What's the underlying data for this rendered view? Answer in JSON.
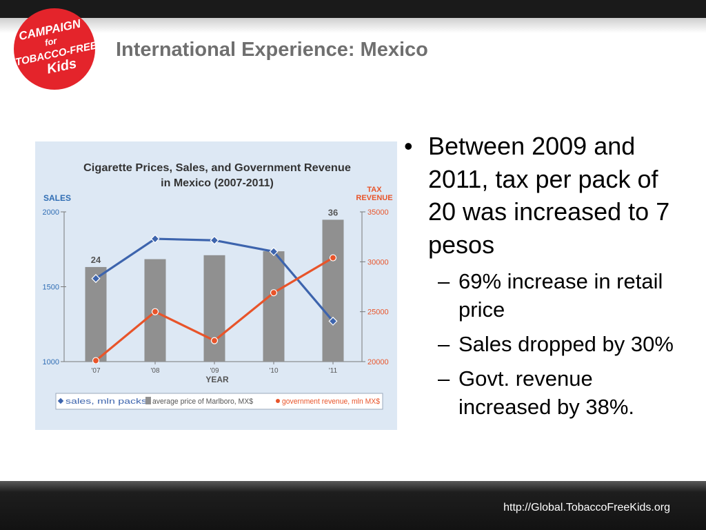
{
  "slide": {
    "title": "International Experience: Mexico",
    "footer_url": "http://Global.TobaccoFreeKids.org"
  },
  "logo": {
    "name": "Campaign for Tobacco-Free Kids logo",
    "lines": [
      "CAMPAIGN",
      "for",
      "TOBACCO-FREE",
      "Kids"
    ],
    "color": "#e4242b"
  },
  "bullets": {
    "main": "Between 2009 and 2011, tax per pack of 20 was increased to 7 pesos",
    "subs": [
      "69% increase in retail price",
      "Sales dropped by 30%",
      "Govt. revenue increased by 38%."
    ]
  },
  "chart_data": {
    "type": "bar",
    "title": "Cigarette Prices, Sales, and Government Revenue in Mexico (2007-2011)",
    "xlabel": "YEAR",
    "categories": [
      "'07",
      "'08",
      "'09",
      "'10",
      "'11"
    ],
    "left_axis": {
      "label": "SALES",
      "ticks": [
        "2000",
        "1500",
        "1000"
      ],
      "ylim": [
        1000,
        2000
      ]
    },
    "right_axis": {
      "label": "TAX REVENUE",
      "ticks": [
        "35000",
        "30000",
        "25000",
        "20000"
      ],
      "ylim": [
        20000,
        35000
      ]
    },
    "series": [
      {
        "name": "sales, mln packs",
        "kind": "line",
        "axis": "left",
        "color": "#3d64ad",
        "values": [
          1555,
          1820,
          1810,
          1735,
          1270
        ]
      },
      {
        "name": "average price of Marlboro, MX$",
        "kind": "bar",
        "axis": "left",
        "color": "#909090",
        "values": [
          24,
          26,
          27,
          28,
          36
        ],
        "labels": [
          "24",
          "",
          "",
          "",
          "36"
        ]
      },
      {
        "name": "government revenue, mln MX$",
        "kind": "line",
        "axis": "right",
        "color": "#e8542a",
        "values": [
          20100,
          25000,
          22100,
          26900,
          30400
        ]
      }
    ],
    "legend_position": "bottom",
    "grid": false
  }
}
